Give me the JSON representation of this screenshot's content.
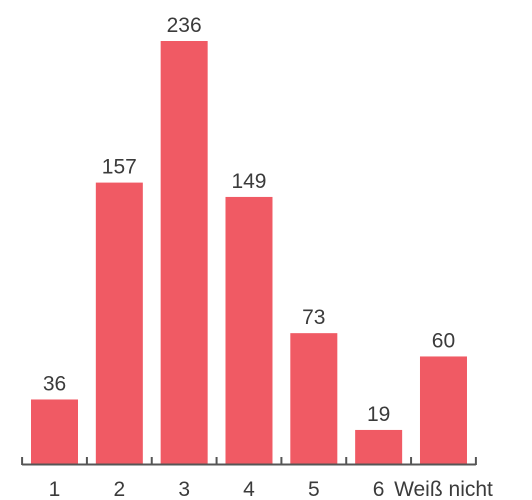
{
  "chart_data": {
    "type": "bar",
    "categories": [
      "1",
      "2",
      "3",
      "4",
      "5",
      "6",
      "Weiß nicht"
    ],
    "values": [
      36,
      157,
      236,
      149,
      73,
      19,
      60
    ],
    "title": "",
    "xlabel": "",
    "ylabel": "",
    "ylim": [
      0,
      236
    ],
    "grid": false,
    "legend": "none",
    "data_labels": true,
    "colors": {
      "bar": "#f05a64",
      "text": "#3b3b3b",
      "axis": "#555555"
    }
  }
}
